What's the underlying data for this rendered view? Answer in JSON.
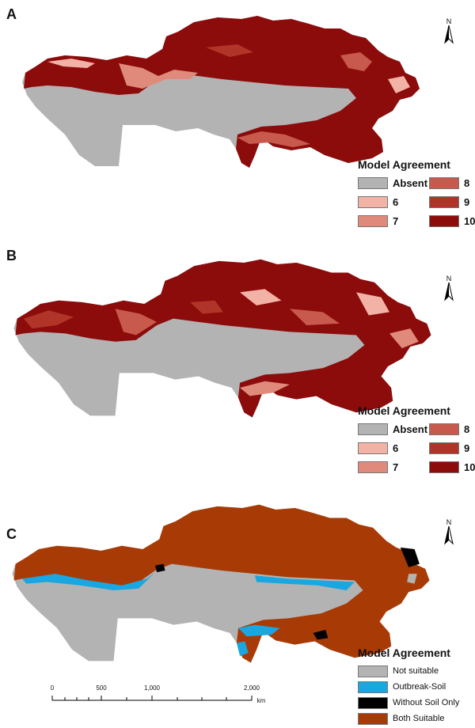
{
  "colors": {
    "absent": "#b3b3b3",
    "c6": "#f2b3a6",
    "c7": "#df8a7a",
    "c8": "#c75a4c",
    "c9": "#b03528",
    "c10": "#8c0b0b",
    "not_suitable": "#b3b3b3",
    "outbreak_soil": "#1aa6e0",
    "without_soil_only": "#000000",
    "both_suitable": "#a83b05"
  },
  "panels": [
    {
      "label": "A",
      "north": "N",
      "legend": {
        "title": "Model Agreement",
        "items": [
          {
            "label": "Absent",
            "color": "#b3b3b3"
          },
          {
            "label": "6",
            "color": "#f2b3a6"
          },
          {
            "label": "7",
            "color": "#df8a7a"
          },
          {
            "label": "8",
            "color": "#c75a4c"
          },
          {
            "label": "9",
            "color": "#b03528"
          },
          {
            "label": "10",
            "color": "#8c0b0b"
          }
        ]
      }
    },
    {
      "label": "B",
      "north": "N",
      "legend": {
        "title": "Model Agreement",
        "items": [
          {
            "label": "Absent",
            "color": "#b3b3b3"
          },
          {
            "label": "6",
            "color": "#f2b3a6"
          },
          {
            "label": "7",
            "color": "#df8a7a"
          },
          {
            "label": "8",
            "color": "#c75a4c"
          },
          {
            "label": "9",
            "color": "#b03528"
          },
          {
            "label": "10",
            "color": "#8c0b0b"
          }
        ]
      }
    },
    {
      "label": "C",
      "north": "N",
      "legend": {
        "title": "Model Agreement",
        "items": [
          {
            "label": "Not suitable",
            "color": "#b3b3b3"
          },
          {
            "label": "Outbreak-Soil",
            "color": "#1aa6e0"
          },
          {
            "label": "Without Soil Only",
            "color": "#000000"
          },
          {
            "label": "Both Suitable",
            "color": "#a83b05"
          }
        ]
      }
    }
  ],
  "scalebar": {
    "ticks": [
      "0",
      "500",
      "1,000",
      "2,000"
    ],
    "unit": "km"
  }
}
